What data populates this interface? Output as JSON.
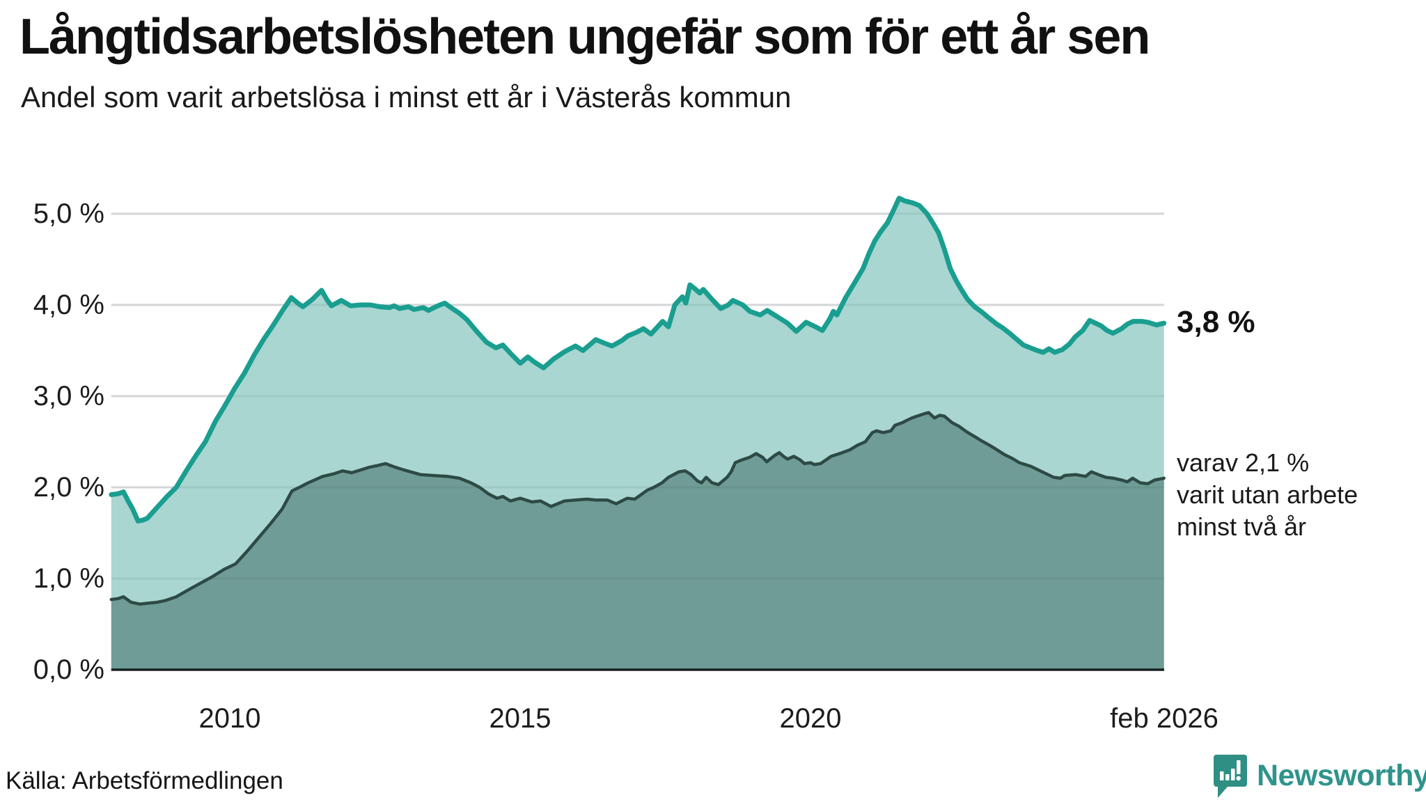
{
  "header": {
    "title": "Långtidsarbetslösheten ungefär som för ett år sen",
    "subtitle": "Andel som varit arbetslösa i minst ett år i Västerås kommun"
  },
  "chart_data": {
    "type": "area",
    "title": "Långtidsarbetslösheten ungefär som för ett år sen",
    "subtitle": "Andel som varit arbetslösa i minst ett år i Västerås kommun",
    "x_unit": "decimal_year",
    "xlim": [
      2007.96,
      2026.083
    ],
    "ylim": [
      0,
      5.4
    ],
    "grid": true,
    "y_ticks": {
      "values": [
        0,
        1,
        2,
        3,
        4,
        5
      ],
      "labels": [
        "0,0 %",
        "1,0 %",
        "2,0 %",
        "3,0 %",
        "4,0 %",
        "5,0 %"
      ]
    },
    "x_ticks": {
      "values": [
        2010,
        2015,
        2020,
        2026.083
      ],
      "labels": [
        "2010",
        "2015",
        "2020",
        "feb 2026"
      ]
    },
    "colors": {
      "line_primary": "#1a9e90",
      "fill_primary": "#a9d6d1",
      "line_secondary": "#2d4a45",
      "fill_secondary": "#6f9c96",
      "gridline": "#e4e4e7",
      "axis_line": "#16211f"
    },
    "series": [
      {
        "name": "arbetslösa minst ett år",
        "end_value": "3,8 %",
        "color": "#1a9e90",
        "fill": "#a9d6d1",
        "points": [
          [
            2007.96,
            1.92
          ],
          [
            2008.08,
            1.93
          ],
          [
            2008.17,
            1.95
          ],
          [
            2008.25,
            1.85
          ],
          [
            2008.33,
            1.76
          ],
          [
            2008.42,
            1.63
          ],
          [
            2008.5,
            1.64
          ],
          [
            2008.58,
            1.66
          ],
          [
            2008.75,
            1.78
          ],
          [
            2008.92,
            1.9
          ],
          [
            2009.08,
            2.0
          ],
          [
            2009.25,
            2.18
          ],
          [
            2009.42,
            2.35
          ],
          [
            2009.58,
            2.5
          ],
          [
            2009.75,
            2.72
          ],
          [
            2009.92,
            2.9
          ],
          [
            2010.08,
            3.08
          ],
          [
            2010.25,
            3.25
          ],
          [
            2010.42,
            3.45
          ],
          [
            2010.58,
            3.62
          ],
          [
            2010.75,
            3.78
          ],
          [
            2010.92,
            3.95
          ],
          [
            2011.06,
            4.08
          ],
          [
            2011.17,
            4.02
          ],
          [
            2011.26,
            3.98
          ],
          [
            2011.42,
            4.06
          ],
          [
            2011.58,
            4.16
          ],
          [
            2011.68,
            4.05
          ],
          [
            2011.75,
            3.99
          ],
          [
            2011.92,
            4.05
          ],
          [
            2012.0,
            4.02
          ],
          [
            2012.08,
            3.99
          ],
          [
            2012.25,
            4.0
          ],
          [
            2012.42,
            4.0
          ],
          [
            2012.58,
            3.98
          ],
          [
            2012.75,
            3.97
          ],
          [
            2012.83,
            3.99
          ],
          [
            2012.92,
            3.96
          ],
          [
            2013.08,
            3.98
          ],
          [
            2013.17,
            3.95
          ],
          [
            2013.33,
            3.97
          ],
          [
            2013.42,
            3.94
          ],
          [
            2013.58,
            3.99
          ],
          [
            2013.7,
            4.02
          ],
          [
            2013.83,
            3.96
          ],
          [
            2013.95,
            3.91
          ],
          [
            2014.08,
            3.84
          ],
          [
            2014.25,
            3.71
          ],
          [
            2014.42,
            3.59
          ],
          [
            2014.58,
            3.53
          ],
          [
            2014.7,
            3.56
          ],
          [
            2014.83,
            3.47
          ],
          [
            2015.0,
            3.36
          ],
          [
            2015.13,
            3.43
          ],
          [
            2015.25,
            3.37
          ],
          [
            2015.4,
            3.31
          ],
          [
            2015.58,
            3.41
          ],
          [
            2015.77,
            3.49
          ],
          [
            2015.95,
            3.55
          ],
          [
            2016.08,
            3.5
          ],
          [
            2016.3,
            3.62
          ],
          [
            2016.45,
            3.58
          ],
          [
            2016.58,
            3.55
          ],
          [
            2016.75,
            3.61
          ],
          [
            2016.85,
            3.66
          ],
          [
            2017.0,
            3.7
          ],
          [
            2017.12,
            3.74
          ],
          [
            2017.25,
            3.68
          ],
          [
            2017.45,
            3.82
          ],
          [
            2017.55,
            3.76
          ],
          [
            2017.66,
            4.0
          ],
          [
            2017.79,
            4.09
          ],
          [
            2017.85,
            4.02
          ],
          [
            2017.92,
            4.22
          ],
          [
            2018.0,
            4.18
          ],
          [
            2018.09,
            4.13
          ],
          [
            2018.15,
            4.17
          ],
          [
            2018.3,
            4.06
          ],
          [
            2018.45,
            3.96
          ],
          [
            2018.58,
            4.0
          ],
          [
            2018.66,
            4.05
          ],
          [
            2018.83,
            4.0
          ],
          [
            2018.95,
            3.93
          ],
          [
            2019.13,
            3.89
          ],
          [
            2019.25,
            3.94
          ],
          [
            2019.45,
            3.86
          ],
          [
            2019.6,
            3.8
          ],
          [
            2019.75,
            3.71
          ],
          [
            2019.92,
            3.81
          ],
          [
            2020.08,
            3.76
          ],
          [
            2020.2,
            3.72
          ],
          [
            2020.33,
            3.85
          ],
          [
            2020.39,
            3.93
          ],
          [
            2020.45,
            3.89
          ],
          [
            2020.6,
            4.08
          ],
          [
            2020.78,
            4.27
          ],
          [
            2020.9,
            4.4
          ],
          [
            2021.0,
            4.56
          ],
          [
            2021.1,
            4.7
          ],
          [
            2021.2,
            4.8
          ],
          [
            2021.32,
            4.9
          ],
          [
            2021.44,
            5.06
          ],
          [
            2021.52,
            5.17
          ],
          [
            2021.62,
            5.14
          ],
          [
            2021.75,
            5.12
          ],
          [
            2021.87,
            5.09
          ],
          [
            2022.0,
            5.0
          ],
          [
            2022.1,
            4.9
          ],
          [
            2022.2,
            4.79
          ],
          [
            2022.3,
            4.61
          ],
          [
            2022.4,
            4.4
          ],
          [
            2022.5,
            4.27
          ],
          [
            2022.6,
            4.16
          ],
          [
            2022.7,
            4.06
          ],
          [
            2022.82,
            3.98
          ],
          [
            2022.95,
            3.92
          ],
          [
            2023.06,
            3.86
          ],
          [
            2023.2,
            3.79
          ],
          [
            2023.3,
            3.75
          ],
          [
            2023.42,
            3.69
          ],
          [
            2023.55,
            3.62
          ],
          [
            2023.66,
            3.56
          ],
          [
            2023.78,
            3.53
          ],
          [
            2023.9,
            3.5
          ],
          [
            2024.0,
            3.48
          ],
          [
            2024.1,
            3.52
          ],
          [
            2024.2,
            3.48
          ],
          [
            2024.33,
            3.51
          ],
          [
            2024.45,
            3.57
          ],
          [
            2024.55,
            3.65
          ],
          [
            2024.68,
            3.72
          ],
          [
            2024.8,
            3.83
          ],
          [
            2024.9,
            3.8
          ],
          [
            2025.0,
            3.77
          ],
          [
            2025.1,
            3.72
          ],
          [
            2025.2,
            3.69
          ],
          [
            2025.35,
            3.74
          ],
          [
            2025.45,
            3.79
          ],
          [
            2025.55,
            3.82
          ],
          [
            2025.7,
            3.82
          ],
          [
            2025.8,
            3.81
          ],
          [
            2025.95,
            3.78
          ],
          [
            2026.08,
            3.8
          ]
        ]
      },
      {
        "name": "varav utan arbete minst två år",
        "end_value": "2,1 %",
        "color": "#2d4a45",
        "fill": "#6f9c96",
        "points": [
          [
            2007.96,
            0.77
          ],
          [
            2008.08,
            0.78
          ],
          [
            2008.17,
            0.8
          ],
          [
            2008.3,
            0.74
          ],
          [
            2008.45,
            0.72
          ],
          [
            2008.6,
            0.73
          ],
          [
            2008.75,
            0.74
          ],
          [
            2008.9,
            0.76
          ],
          [
            2009.08,
            0.8
          ],
          [
            2009.3,
            0.88
          ],
          [
            2009.5,
            0.95
          ],
          [
            2009.7,
            1.02
          ],
          [
            2009.9,
            1.1
          ],
          [
            2010.1,
            1.16
          ],
          [
            2010.3,
            1.3
          ],
          [
            2010.5,
            1.45
          ],
          [
            2010.7,
            1.6
          ],
          [
            2010.9,
            1.76
          ],
          [
            2011.07,
            1.96
          ],
          [
            2011.2,
            2.0
          ],
          [
            2011.35,
            2.05
          ],
          [
            2011.6,
            2.12
          ],
          [
            2011.8,
            2.15
          ],
          [
            2011.94,
            2.18
          ],
          [
            2012.1,
            2.16
          ],
          [
            2012.25,
            2.19
          ],
          [
            2012.4,
            2.22
          ],
          [
            2012.55,
            2.24
          ],
          [
            2012.68,
            2.26
          ],
          [
            2012.85,
            2.22
          ],
          [
            2013.0,
            2.19
          ],
          [
            2013.28,
            2.14
          ],
          [
            2013.5,
            2.13
          ],
          [
            2013.75,
            2.12
          ],
          [
            2013.95,
            2.1
          ],
          [
            2014.15,
            2.05
          ],
          [
            2014.3,
            2.0
          ],
          [
            2014.45,
            1.93
          ],
          [
            2014.6,
            1.88
          ],
          [
            2014.7,
            1.9
          ],
          [
            2014.83,
            1.85
          ],
          [
            2015.0,
            1.88
          ],
          [
            2015.2,
            1.84
          ],
          [
            2015.35,
            1.85
          ],
          [
            2015.53,
            1.79
          ],
          [
            2015.76,
            1.85
          ],
          [
            2015.95,
            1.86
          ],
          [
            2016.15,
            1.87
          ],
          [
            2016.3,
            1.86
          ],
          [
            2016.5,
            1.86
          ],
          [
            2016.65,
            1.82
          ],
          [
            2016.84,
            1.88
          ],
          [
            2016.97,
            1.87
          ],
          [
            2017.19,
            1.97
          ],
          [
            2017.3,
            2.0
          ],
          [
            2017.44,
            2.05
          ],
          [
            2017.55,
            2.11
          ],
          [
            2017.73,
            2.17
          ],
          [
            2017.84,
            2.18
          ],
          [
            2017.94,
            2.14
          ],
          [
            2018.05,
            2.07
          ],
          [
            2018.12,
            2.05
          ],
          [
            2018.2,
            2.11
          ],
          [
            2018.3,
            2.05
          ],
          [
            2018.41,
            2.03
          ],
          [
            2018.56,
            2.11
          ],
          [
            2018.63,
            2.17
          ],
          [
            2018.7,
            2.27
          ],
          [
            2018.81,
            2.3
          ],
          [
            2018.95,
            2.33
          ],
          [
            2019.06,
            2.37
          ],
          [
            2019.17,
            2.33
          ],
          [
            2019.24,
            2.28
          ],
          [
            2019.38,
            2.35
          ],
          [
            2019.46,
            2.38
          ],
          [
            2019.53,
            2.34
          ],
          [
            2019.6,
            2.31
          ],
          [
            2019.71,
            2.34
          ],
          [
            2019.82,
            2.3
          ],
          [
            2019.89,
            2.26
          ],
          [
            2020.0,
            2.27
          ],
          [
            2020.06,
            2.25
          ],
          [
            2020.17,
            2.26
          ],
          [
            2020.35,
            2.34
          ],
          [
            2020.54,
            2.38
          ],
          [
            2020.67,
            2.41
          ],
          [
            2020.8,
            2.46
          ],
          [
            2020.94,
            2.5
          ],
          [
            2021.06,
            2.6
          ],
          [
            2021.13,
            2.62
          ],
          [
            2021.25,
            2.6
          ],
          [
            2021.38,
            2.62
          ],
          [
            2021.45,
            2.68
          ],
          [
            2021.58,
            2.71
          ],
          [
            2021.64,
            2.73
          ],
          [
            2021.74,
            2.76
          ],
          [
            2021.83,
            2.78
          ],
          [
            2021.97,
            2.81
          ],
          [
            2022.03,
            2.82
          ],
          [
            2022.13,
            2.76
          ],
          [
            2022.22,
            2.79
          ],
          [
            2022.3,
            2.78
          ],
          [
            2022.43,
            2.71
          ],
          [
            2022.55,
            2.67
          ],
          [
            2022.68,
            2.61
          ],
          [
            2022.81,
            2.56
          ],
          [
            2022.94,
            2.51
          ],
          [
            2023.08,
            2.46
          ],
          [
            2023.21,
            2.41
          ],
          [
            2023.33,
            2.36
          ],
          [
            2023.46,
            2.32
          ],
          [
            2023.59,
            2.27
          ],
          [
            2023.79,
            2.23
          ],
          [
            2023.92,
            2.19
          ],
          [
            2024.05,
            2.15
          ],
          [
            2024.18,
            2.11
          ],
          [
            2024.3,
            2.1
          ],
          [
            2024.37,
            2.13
          ],
          [
            2024.56,
            2.14
          ],
          [
            2024.73,
            2.12
          ],
          [
            2024.83,
            2.17
          ],
          [
            2024.95,
            2.14
          ],
          [
            2025.08,
            2.11
          ],
          [
            2025.21,
            2.1
          ],
          [
            2025.35,
            2.08
          ],
          [
            2025.45,
            2.06
          ],
          [
            2025.54,
            2.1
          ],
          [
            2025.67,
            2.05
          ],
          [
            2025.8,
            2.04
          ],
          [
            2025.92,
            2.08
          ],
          [
            2026.08,
            2.1
          ]
        ]
      }
    ],
    "annotations": {
      "primary_end_label": "3,8 %",
      "secondary_end_label_lines": [
        "varav 2,1 %",
        "varit utan arbete",
        "minst två år"
      ]
    },
    "legend_position": "right-edge-labels"
  },
  "footer": {
    "source": "Källa: Arbetsförmedlingen",
    "brand": "Newsworthy"
  }
}
